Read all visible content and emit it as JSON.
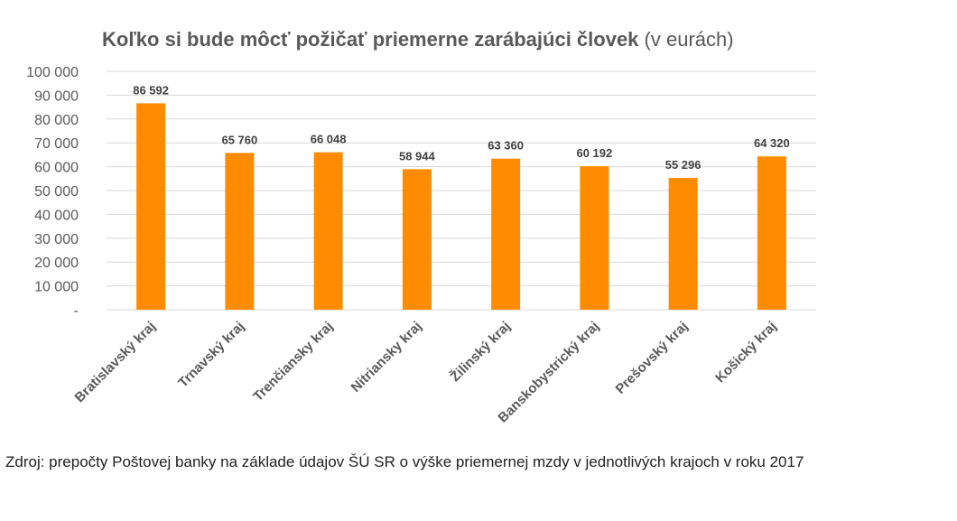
{
  "chart_data": {
    "type": "bar",
    "title": "Koľko si bude môcť požičať priemerne zarábajúci človek",
    "title_unit": "(v eurách)",
    "categories": [
      "Bratislavský kraj",
      "Trnavský kraj",
      "Trenčiansky kraj",
      "Nitriansky kraj",
      "Žilinský kraj",
      "Banskobystrický kraj",
      "Prešovský kraj",
      "Košický kraj"
    ],
    "values": [
      86592,
      65760,
      66048,
      58944,
      63360,
      60192,
      55296,
      64320
    ],
    "data_labels": [
      "86 592",
      "65 760",
      "66 048",
      "58 944",
      "63 360",
      "60 192",
      "55 296",
      "64 320"
    ],
    "yticks": [
      "-",
      "10 000",
      "20 000",
      "30 000",
      "40 000",
      "50 000",
      "60 000",
      "70 000",
      "80 000",
      "90 000",
      "100 000"
    ],
    "ylim": [
      0,
      100000
    ],
    "xlabel": "",
    "ylabel": "",
    "grid": true,
    "legend": "none",
    "bar_color": "#ff8c00"
  },
  "source": {
    "text": "Zdroj: prepočty Poštovej banky na základe údajov ŠÚ SR o výške priemernej mzdy v jednotlivých krajoch v roku 2017"
  }
}
